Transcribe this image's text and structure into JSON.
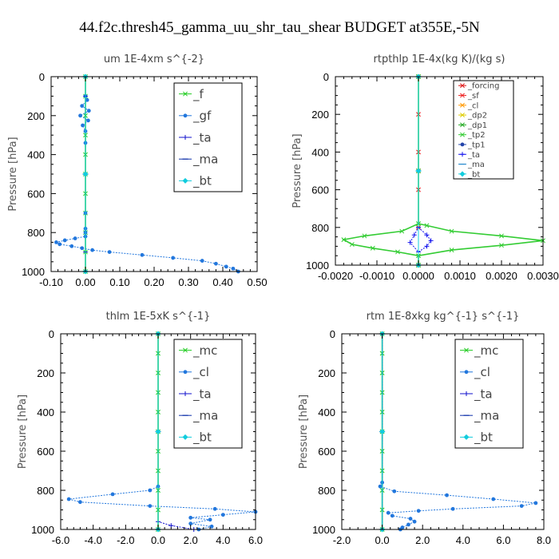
{
  "figure": {
    "title": "44.f2c.thresh45_gamma_uu_shr_tau_shear  BUDGET at355E,-5N"
  },
  "chart_data": [
    {
      "type": "line",
      "title": "um   1E-4xm s^{-2}",
      "ylabel": "Pressure [hPa]",
      "xlim": [
        -0.1,
        0.5
      ],
      "ylim": [
        1000,
        0
      ],
      "xticks": [
        "-0.10",
        "0.00",
        "0.10",
        "0.20",
        "0.30",
        "0.40",
        "0.50"
      ],
      "yticks": [
        "0",
        "200",
        "400",
        "600",
        "800",
        "1000"
      ],
      "legend_position": "top-right",
      "legend_font": 15,
      "series": [
        {
          "name": "_f",
          "color": "#22cc22",
          "marker": "x",
          "points": [
            [
              0,
              0
            ],
            [
              0,
              100
            ],
            [
              0,
              200
            ],
            [
              0,
              300
            ],
            [
              0,
              400
            ],
            [
              0,
              500
            ],
            [
              0,
              600
            ],
            [
              0,
              700
            ],
            [
              0,
              800
            ],
            [
              0,
              900
            ],
            [
              0,
              1000
            ]
          ]
        },
        {
          "name": "_gf",
          "color": "#2277dd",
          "marker": "dot",
          "points": [
            [
              0,
              0
            ],
            [
              0,
              100
            ],
            [
              0.005,
              120
            ],
            [
              -0.01,
              150
            ],
            [
              0.01,
              175
            ],
            [
              -0.015,
              200
            ],
            [
              0.008,
              225
            ],
            [
              -0.008,
              250
            ],
            [
              0,
              280
            ],
            [
              0,
              340
            ],
            [
              0,
              500
            ],
            [
              0,
              700
            ],
            [
              0,
              780
            ],
            [
              0,
              800
            ],
            [
              0,
              820
            ],
            [
              -0.03,
              830
            ],
            [
              -0.06,
              840
            ],
            [
              -0.085,
              850
            ],
            [
              -0.075,
              860
            ],
            [
              -0.04,
              870
            ],
            [
              -0.01,
              880
            ],
            [
              0.02,
              890
            ],
            [
              0.07,
              900
            ],
            [
              0.165,
              915
            ],
            [
              0.255,
              930
            ],
            [
              0.34,
              945
            ],
            [
              0.38,
              960
            ],
            [
              0.41,
              975
            ],
            [
              0.43,
              985
            ],
            [
              0.445,
              1000
            ]
          ]
        },
        {
          "name": "_ta",
          "color": "#1111cc",
          "marker": "plus",
          "points": [
            [
              0,
              0
            ],
            [
              0,
              100
            ],
            [
              0,
              500
            ],
            [
              0,
              900
            ],
            [
              0,
              1000
            ]
          ]
        },
        {
          "name": "_ma",
          "color": "#1133aa",
          "marker": "dash",
          "points": [
            [
              0,
              0
            ],
            [
              0,
              500
            ],
            [
              0,
              1000
            ]
          ]
        },
        {
          "name": "_bt",
          "color": "#11ccdd",
          "marker": "diamond",
          "points": [
            [
              0,
              0
            ],
            [
              0,
              500
            ],
            [
              0,
              1000
            ]
          ]
        }
      ]
    },
    {
      "type": "line",
      "title": "rtpthlp   1E-4x(kg K)/(kg s)",
      "ylabel": "Pressure [hPa]",
      "xlim": [
        -0.002,
        0.003
      ],
      "ylim": [
        1000,
        0
      ],
      "xticks": [
        "-0.0020",
        "-0.0010",
        "0.0000",
        "0.0010",
        "0.0020",
        "0.0030"
      ],
      "yticks": [
        "0",
        "200",
        "400",
        "600",
        "800",
        "1000"
      ],
      "legend_position": "top-right",
      "legend_font": 10,
      "series": [
        {
          "name": "_forcing",
          "color": "#dd1111",
          "marker": "x",
          "points": [
            [
              0,
              0
            ],
            [
              0,
              200
            ],
            [
              0,
              400
            ],
            [
              0,
              600
            ],
            [
              0,
              800
            ],
            [
              0,
              1000
            ]
          ]
        },
        {
          "name": "_sf",
          "color": "#ee2222",
          "marker": "x",
          "points": [
            [
              0,
              0
            ],
            [
              0,
              500
            ],
            [
              0,
              1000
            ]
          ]
        },
        {
          "name": "_cl",
          "color": "#ff9900",
          "marker": "x",
          "points": [
            [
              0,
              0
            ],
            [
              0,
              500
            ],
            [
              0,
              1000
            ]
          ]
        },
        {
          "name": "_dp2",
          "color": "#ddcc00",
          "marker": "x",
          "points": [
            [
              0,
              0
            ],
            [
              0,
              500
            ],
            [
              0,
              1000
            ]
          ]
        },
        {
          "name": "_dp1",
          "color": "#22aa22",
          "marker": "x",
          "points": [
            [
              0,
              0
            ],
            [
              0,
              500
            ],
            [
              0,
              1000
            ]
          ]
        },
        {
          "name": "_tp2",
          "color": "#33cc33",
          "marker": "x",
          "points": [
            [
              0,
              0
            ],
            [
              0,
              780
            ],
            [
              -0.0004,
              820
            ],
            [
              -0.0013,
              845
            ],
            [
              -0.0018,
              865
            ],
            [
              -0.0016,
              890
            ],
            [
              -0.0011,
              910
            ],
            [
              -0.0005,
              930
            ],
            [
              0,
              950
            ],
            [
              0,
              1000
            ],
            [
              0,
              950
            ],
            [
              0.0008,
              920
            ],
            [
              0.002,
              895
            ],
            [
              0.003,
              870
            ],
            [
              0.002,
              845
            ],
            [
              0.0008,
              820
            ],
            [
              0.0002,
              790
            ],
            [
              0,
              780
            ]
          ]
        },
        {
          "name": "_tp1",
          "color": "#2244aa",
          "marker": "dot",
          "points": [
            [
              0,
              0
            ],
            [
              0,
              500
            ],
            [
              0,
              1000
            ]
          ]
        },
        {
          "name": "_ta",
          "color": "#1111ee",
          "marker": "plus",
          "points": [
            [
              0,
              800
            ],
            [
              0.0002,
              840
            ],
            [
              0.0003,
              870
            ],
            [
              0.0002,
              900
            ],
            [
              0,
              930
            ],
            [
              -0.0002,
              880
            ],
            [
              -0.0001,
              840
            ],
            [
              0,
              800
            ]
          ]
        },
        {
          "name": "_ma",
          "color": "#2288cc",
          "marker": "dash",
          "points": [
            [
              0,
              0
            ],
            [
              0,
              500
            ],
            [
              0,
              1000
            ]
          ]
        },
        {
          "name": "_bt",
          "color": "#11ccdd",
          "marker": "diamond",
          "points": [
            [
              0,
              0
            ],
            [
              0,
              500
            ],
            [
              0,
              1000
            ]
          ]
        }
      ]
    },
    {
      "type": "line",
      "title": "thlm   1E-5xK s^{-1}",
      "ylabel": "Pressure [hPa]",
      "xlim": [
        -6,
        6
      ],
      "ylim": [
        1000,
        0
      ],
      "xticks": [
        "-6.0",
        "-4.0",
        "-2.0",
        "0.0",
        "2.0",
        "4.0",
        "6.0"
      ],
      "yticks": [
        "0",
        "200",
        "400",
        "600",
        "800",
        "1000"
      ],
      "legend_position": "top-right",
      "legend_font": 15,
      "series": [
        {
          "name": "_mc",
          "color": "#22cc22",
          "marker": "x",
          "points": [
            [
              0,
              0
            ],
            [
              0,
              100
            ],
            [
              0,
              200
            ],
            [
              0,
              300
            ],
            [
              0,
              400
            ],
            [
              0,
              500
            ],
            [
              0,
              600
            ],
            [
              0,
              700
            ],
            [
              0,
              800
            ],
            [
              0,
              900
            ],
            [
              0,
              1000
            ]
          ]
        },
        {
          "name": "_cl",
          "color": "#2277dd",
          "marker": "dot",
          "points": [
            [
              0,
              0
            ],
            [
              0,
              780
            ],
            [
              -0.5,
              800
            ],
            [
              -2.8,
              820
            ],
            [
              -5.5,
              845
            ],
            [
              -4.8,
              860
            ],
            [
              -0.5,
              880
            ],
            [
              3.5,
              895
            ],
            [
              6,
              910
            ],
            [
              4,
              925
            ],
            [
              2,
              940
            ],
            [
              3.2,
              950
            ],
            [
              2,
              970
            ],
            [
              3.3,
              985
            ],
            [
              2.5,
              1000
            ]
          ]
        },
        {
          "name": "_ta",
          "color": "#1111cc",
          "marker": "plus",
          "points": [
            [
              0,
              0
            ],
            [
              0,
              960
            ],
            [
              0.8,
              980
            ],
            [
              2.2,
              1000
            ]
          ]
        },
        {
          "name": "_ma",
          "color": "#1133aa",
          "marker": "dash",
          "points": [
            [
              0,
              0
            ],
            [
              0,
              500
            ],
            [
              0,
              1000
            ]
          ]
        },
        {
          "name": "_bt",
          "color": "#11ccdd",
          "marker": "diamond",
          "points": [
            [
              0,
              0
            ],
            [
              0,
              500
            ],
            [
              0,
              1000
            ]
          ]
        }
      ]
    },
    {
      "type": "line",
      "title": "rtm   1E-8xkg kg^{-1} s^{-1}",
      "ylabel": "Pressure [hPa]",
      "xlim": [
        -2,
        8
      ],
      "ylim": [
        1000,
        0
      ],
      "xticks": [
        "-2.0",
        "0.0",
        "2.0",
        "4.0",
        "6.0",
        "8.0"
      ],
      "yticks": [
        "0",
        "200",
        "400",
        "600",
        "800",
        "1000"
      ],
      "legend_position": "top-right",
      "legend_font": 15,
      "series": [
        {
          "name": "_mc",
          "color": "#22cc22",
          "marker": "x",
          "points": [
            [
              0,
              0
            ],
            [
              0,
              100
            ],
            [
              0,
              200
            ],
            [
              0,
              300
            ],
            [
              0,
              400
            ],
            [
              0,
              500
            ],
            [
              0,
              600
            ],
            [
              0,
              700
            ],
            [
              0,
              800
            ],
            [
              0,
              900
            ],
            [
              0,
              1000
            ]
          ]
        },
        {
          "name": "_cl",
          "color": "#2277dd",
          "marker": "dot",
          "points": [
            [
              0,
              0
            ],
            [
              0,
              760
            ],
            [
              -0.1,
              780
            ],
            [
              0.6,
              805
            ],
            [
              3.2,
              825
            ],
            [
              5.5,
              845
            ],
            [
              7.6,
              865
            ],
            [
              6.9,
              880
            ],
            [
              3.5,
              895
            ],
            [
              1.8,
              905
            ],
            [
              0.3,
              915
            ],
            [
              0.5,
              930
            ],
            [
              1.4,
              945
            ],
            [
              1.6,
              960
            ],
            [
              1.3,
              975
            ],
            [
              1,
              990
            ],
            [
              0.9,
              1000
            ]
          ]
        },
        {
          "name": "_ta",
          "color": "#1111cc",
          "marker": "plus",
          "points": [
            [
              0,
              0
            ],
            [
              0,
              500
            ],
            [
              0,
              1000
            ]
          ]
        },
        {
          "name": "_ma",
          "color": "#1133aa",
          "marker": "dash",
          "points": [
            [
              0,
              0
            ],
            [
              0,
              500
            ],
            [
              0,
              1000
            ]
          ]
        },
        {
          "name": "_bt",
          "color": "#11ccdd",
          "marker": "diamond",
          "points": [
            [
              0,
              0
            ],
            [
              0,
              500
            ],
            [
              0,
              1000
            ]
          ]
        }
      ]
    }
  ]
}
